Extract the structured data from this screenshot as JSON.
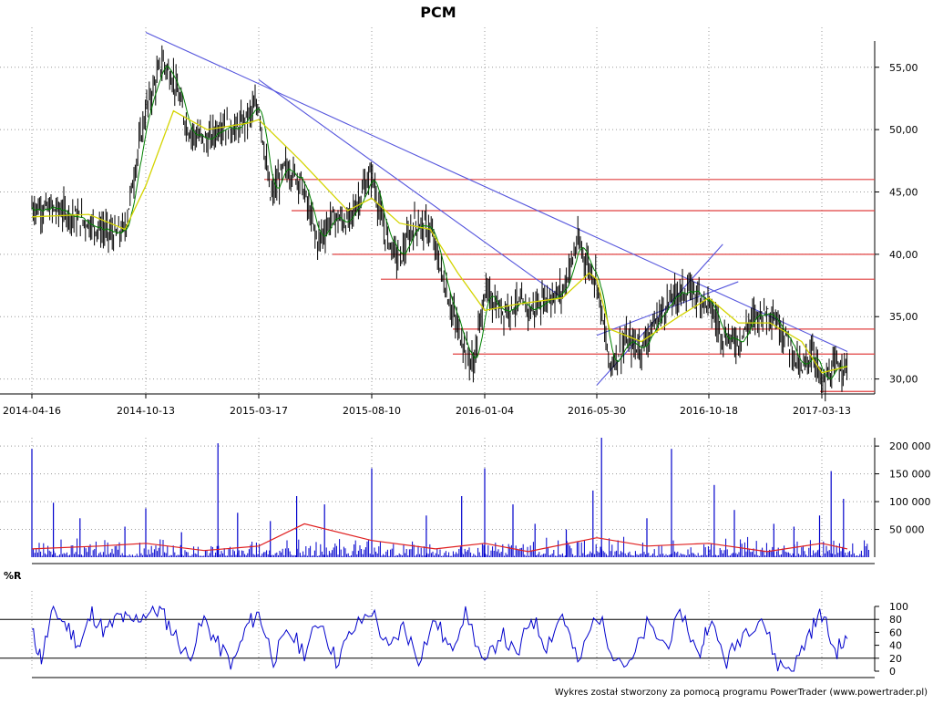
{
  "title": "PCM",
  "credit": "Wykres został stworzony za pomocą programu PowerTrader (www.powertrader.pl)",
  "indicator_label": "%R",
  "colors": {
    "candle": "#000000",
    "ma_fast": "#008000",
    "ma_slow": "#d4d400",
    "trendline": "#5555dd",
    "support": "#e04040",
    "volume": "#0000cc",
    "volume_ma": "#e02020",
    "williams": "#0000cc",
    "grid": "#999999"
  },
  "chart_data": [
    {
      "type": "line",
      "panel": "price",
      "title": "PCM",
      "x_ticks": [
        "2014-04-16",
        "2014-10-13",
        "2015-03-17",
        "2015-08-10",
        "2016-01-04",
        "2016-05-30",
        "2016-10-18",
        "2017-03-13"
      ],
      "y_ticks": [
        "30,00",
        "35,00",
        "40,00",
        "45,00",
        "50,00",
        "55,00"
      ],
      "ylim": [
        28.8,
        58.2
      ],
      "series": [
        {
          "kind": "close",
          "x": [
            "2014-04-16",
            "2014-06-01",
            "2014-07-15",
            "2014-08-25",
            "2014-09-10",
            "2014-09-30",
            "2014-10-13",
            "2014-11-05",
            "2014-11-20",
            "2014-12-10",
            "2015-01-05",
            "2015-01-25",
            "2015-02-15",
            "2015-03-01",
            "2015-03-17",
            "2015-04-01",
            "2015-04-20",
            "2015-05-10",
            "2015-06-01",
            "2015-06-20",
            "2015-07-10",
            "2015-07-25",
            "2015-08-10",
            "2015-08-25",
            "2015-09-15",
            "2015-10-05",
            "2015-10-25",
            "2015-11-15",
            "2015-11-30",
            "2015-12-20",
            "2016-01-04",
            "2016-01-25",
            "2016-02-15",
            "2016-03-05",
            "2016-03-25",
            "2016-04-15",
            "2016-05-05",
            "2016-05-20",
            "2016-05-30",
            "2016-06-15",
            "2016-07-05",
            "2016-07-25",
            "2016-08-20",
            "2016-09-10",
            "2016-09-30",
            "2016-10-18",
            "2016-11-05",
            "2016-11-25",
            "2016-12-15",
            "2017-01-05",
            "2017-01-25",
            "2017-02-15",
            "2017-03-01",
            "2017-03-13",
            "2017-04-01",
            "2017-04-15"
          ],
          "y": [
            43.8,
            43.5,
            42.5,
            41.5,
            42.0,
            48.0,
            51.5,
            55.5,
            54.0,
            50.0,
            49.0,
            50.5,
            50.0,
            51.0,
            52.0,
            44.5,
            47.0,
            46.0,
            41.0,
            43.0,
            42.5,
            44.5,
            46.5,
            42.0,
            39.5,
            42.5,
            42.0,
            37.0,
            34.0,
            31.0,
            37.0,
            35.5,
            36.0,
            35.5,
            36.5,
            37.0,
            41.0,
            39.0,
            38.0,
            31.0,
            33.0,
            32.5,
            35.5,
            37.0,
            37.0,
            36.0,
            33.5,
            33.0,
            35.0,
            35.5,
            33.5,
            30.5,
            32.5,
            29.5,
            31.0,
            31.2
          ]
        },
        {
          "kind": "ma_slow",
          "x": [
            "2014-04-16",
            "2014-07-15",
            "2014-09-10",
            "2014-10-13",
            "2014-11-20",
            "2015-01-05",
            "2015-03-01",
            "2015-03-17",
            "2015-05-10",
            "2015-07-10",
            "2015-08-10",
            "2015-09-15",
            "2015-10-25",
            "2015-11-30",
            "2016-01-04",
            "2016-02-15",
            "2016-04-15",
            "2016-05-20",
            "2016-05-30",
            "2016-06-15",
            "2016-07-25",
            "2016-09-10",
            "2016-10-18",
            "2016-11-25",
            "2017-01-05",
            "2017-02-15",
            "2017-03-13",
            "2017-04-15"
          ],
          "y": [
            43.0,
            43.2,
            42.0,
            45.5,
            51.5,
            50.0,
            50.5,
            50.8,
            47.5,
            43.5,
            44.5,
            42.5,
            42.0,
            38.5,
            35.5,
            36.0,
            36.5,
            38.5,
            38.0,
            34.0,
            33.0,
            35.0,
            36.5,
            34.5,
            34.5,
            33.0,
            30.5,
            31.0
          ]
        }
      ],
      "support_lines": [
        46.0,
        43.5,
        40.0,
        38.0,
        34.0,
        32.0,
        29.0
      ],
      "trendlines": [
        {
          "from": [
            "2014-10-13",
            57.8
          ],
          "to": [
            "2017-04-15",
            32.2
          ]
        },
        {
          "from": [
            "2015-03-17",
            54.0
          ],
          "to": [
            "2016-04-15",
            36.5
          ]
        },
        {
          "from": [
            "2016-05-30",
            29.5
          ],
          "to": [
            "2016-11-05",
            40.8
          ]
        },
        {
          "from": [
            "2016-05-30",
            33.5
          ],
          "to": [
            "2016-11-25",
            37.8
          ]
        }
      ]
    },
    {
      "type": "bar",
      "panel": "volume",
      "y_ticks": [
        "50 000",
        "100 000",
        "150 000",
        "200 000"
      ],
      "ylim": [
        0,
        215000
      ],
      "series": [
        {
          "kind": "volume",
          "name": "",
          "x": [
            "2014-04-16",
            "2014-05-20",
            "2014-07-01",
            "2014-09-10",
            "2014-10-13",
            "2014-12-01",
            "2015-01-20",
            "2015-02-16",
            "2015-04-01",
            "2015-05-05",
            "2015-06-10",
            "2015-08-10",
            "2015-10-20",
            "2015-12-05",
            "2016-01-04",
            "2016-02-10",
            "2016-03-10",
            "2016-04-20",
            "2016-05-25",
            "2016-06-05",
            "2016-08-01",
            "2016-09-01",
            "2016-10-25",
            "2016-11-20",
            "2017-01-10",
            "2017-02-05",
            "2017-03-10",
            "2017-03-25",
            "2017-04-10"
          ],
          "values": [
            195000,
            98000,
            70000,
            55000,
            88000,
            45000,
            205000,
            80000,
            65000,
            110000,
            95000,
            160000,
            75000,
            110000,
            160000,
            95000,
            60000,
            50000,
            120000,
            215000,
            70000,
            195000,
            130000,
            85000,
            60000,
            55000,
            75000,
            155000,
            105000
          ]
        },
        {
          "kind": "volume_ma",
          "name": "",
          "x": [
            "2014-04-16",
            "2014-08-01",
            "2014-10-13",
            "2015-01-01",
            "2015-03-17",
            "2015-05-15",
            "2015-08-10",
            "2015-11-01",
            "2016-01-04",
            "2016-03-01",
            "2016-05-30",
            "2016-08-01",
            "2016-10-18",
            "2017-01-01",
            "2017-03-13",
            "2017-04-15"
          ],
          "values": [
            15000,
            20000,
            25000,
            12000,
            20000,
            60000,
            30000,
            15000,
            25000,
            10000,
            35000,
            20000,
            25000,
            10000,
            25000,
            15000
          ]
        }
      ]
    },
    {
      "type": "line",
      "panel": "indicator",
      "title": "%R",
      "y_ticks": [
        "0",
        "20",
        "40",
        "60",
        "80",
        "100"
      ],
      "ylim": [
        0,
        100
      ],
      "reference_lines": [
        20,
        80
      ],
      "series": [
        {
          "kind": "williams_r",
          "name": "",
          "x": [
            "2014-04-16",
            "2014-05-01",
            "2014-05-20",
            "2014-06-10",
            "2014-07-01",
            "2014-07-20",
            "2014-08-10",
            "2014-09-01",
            "2014-09-20",
            "2014-10-13",
            "2014-11-01",
            "2014-11-20",
            "2014-12-10",
            "2015-01-01",
            "2015-01-20",
            "2015-02-10",
            "2015-03-01",
            "2015-03-17",
            "2015-04-05",
            "2015-04-25",
            "2015-05-15",
            "2015-06-05",
            "2015-06-25",
            "2015-07-15",
            "2015-08-10",
            "2015-09-01",
            "2015-09-20",
            "2015-10-10",
            "2015-11-01",
            "2015-11-20",
            "2015-12-10",
            "2016-01-04",
            "2016-01-25",
            "2016-02-15",
            "2016-03-05",
            "2016-03-25",
            "2016-04-15",
            "2016-05-05",
            "2016-05-30",
            "2016-06-20",
            "2016-07-10",
            "2016-08-01",
            "2016-08-25",
            "2016-09-15",
            "2016-10-05",
            "2016-10-18",
            "2016-11-10",
            "2016-12-01",
            "2016-12-25",
            "2017-01-15",
            "2017-02-05",
            "2017-02-25",
            "2017-03-13",
            "2017-03-30",
            "2017-04-15"
          ],
          "values": [
            60,
            20,
            95,
            70,
            40,
            90,
            60,
            85,
            75,
            90,
            95,
            60,
            20,
            80,
            40,
            10,
            70,
            90,
            20,
            60,
            30,
            80,
            15,
            60,
            95,
            30,
            70,
            20,
            80,
            30,
            95,
            5,
            60,
            20,
            85,
            40,
            90,
            10,
            90,
            30,
            5,
            70,
            40,
            90,
            20,
            80,
            15,
            60,
            85,
            10,
            5,
            60,
            90,
            30,
            50
          ]
        }
      ]
    }
  ]
}
